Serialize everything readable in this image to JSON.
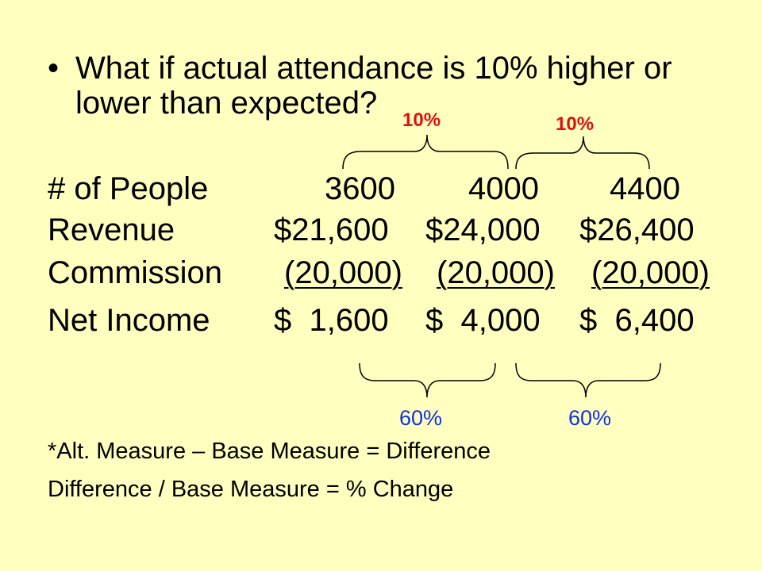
{
  "bullet": {
    "marker": "•",
    "line1": "What if actual attendance is 10% higher or",
    "line2": "lower than expected?"
  },
  "top_braces": [
    {
      "label": "10%",
      "color": "#E01010"
    },
    {
      "label": "10%",
      "color": "#E01010"
    }
  ],
  "table": [
    {
      "label": "# of People",
      "values": [
        "3600",
        "4000",
        "4400"
      ],
      "underline": false
    },
    {
      "label": "Revenue",
      "values": [
        "$21,600",
        "$24,000",
        "$26,400"
      ],
      "underline": false
    },
    {
      "label": "Commission",
      "values": [
        "(20,000)",
        "(20,000)",
        "(20,000)"
      ],
      "underline": true
    },
    {
      "label": "Net Income",
      "values": [
        "$  1,600",
        "$  4,000",
        "$  6,400"
      ],
      "underline": false
    }
  ],
  "bottom_braces": [
    {
      "label": "60%",
      "color": "#1030E0"
    },
    {
      "label": "60%",
      "color": "#1030E0"
    }
  ],
  "notes": [
    "*Alt. Measure – Base Measure = Difference",
    "Difference / Base Measure = % Change"
  ]
}
